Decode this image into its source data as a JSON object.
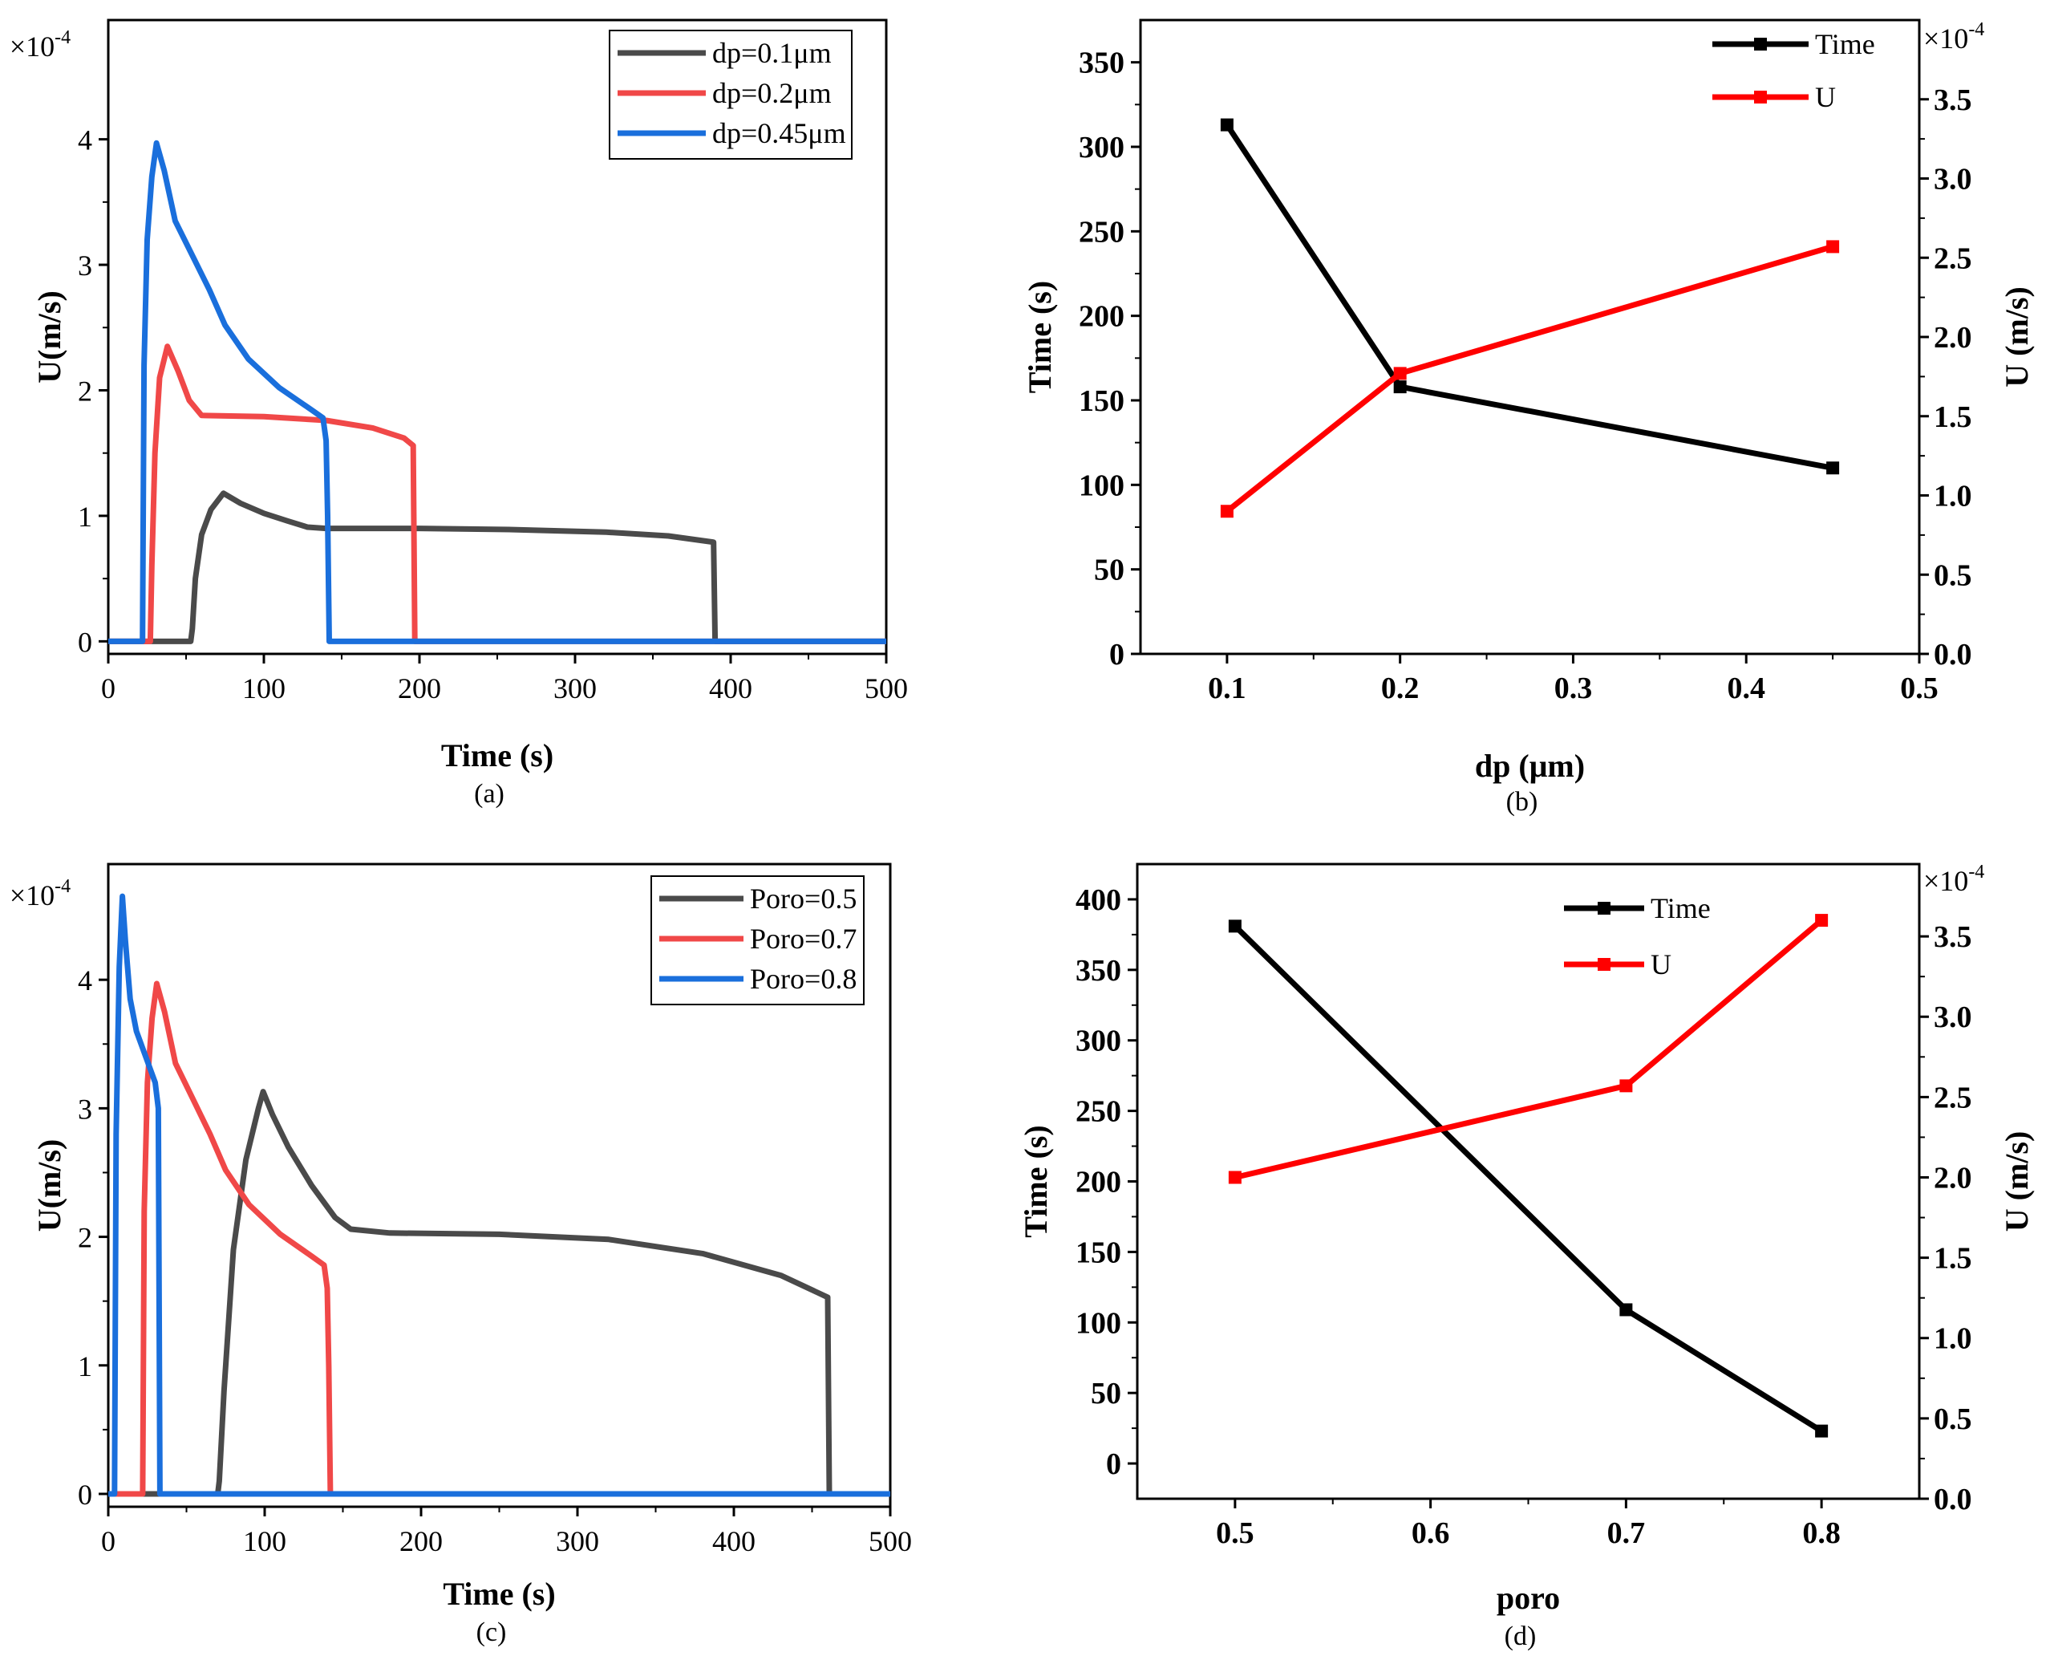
{
  "colors": {
    "gray": "#4a4a4a",
    "red": "#f04848",
    "blue": "#1a6fdc",
    "black": "#000000",
    "pure_red": "#ff0000"
  },
  "chart_data": [
    {
      "id": "a",
      "type": "line",
      "panel_label": "(a)",
      "xlabel": "Time (s)",
      "ylabel": "U(m/s)",
      "multiplier": "×10",
      "multiplier_exp": "-4",
      "xlim": [
        0,
        500
      ],
      "ylim": [
        -0.1,
        4.95
      ],
      "xticks": [
        0,
        100,
        200,
        300,
        400,
        500
      ],
      "xtick_labels": [
        "0",
        "100",
        "200",
        "300",
        "400",
        "500"
      ],
      "yticks": [
        0,
        1,
        2,
        3,
        4
      ],
      "ytick_labels": [
        "0",
        "1",
        "2",
        "3",
        "4"
      ],
      "legend": [
        "dp=0.1μm",
        "dp=0.2μm",
        "dp=0.45μm"
      ],
      "series": [
        {
          "name": "dp=0.1μm",
          "color": "gray",
          "points": [
            [
              0,
              0
            ],
            [
              53,
              0
            ],
            [
              54,
              0.1
            ],
            [
              56,
              0.5
            ],
            [
              60,
              0.85
            ],
            [
              66,
              1.05
            ],
            [
              74,
              1.18
            ],
            [
              85,
              1.1
            ],
            [
              100,
              1.02
            ],
            [
              115,
              0.96
            ],
            [
              128,
              0.91
            ],
            [
              140,
              0.9
            ],
            [
              200,
              0.9
            ],
            [
              260,
              0.89
            ],
            [
              320,
              0.87
            ],
            [
              360,
              0.84
            ],
            [
              389,
              0.79
            ],
            [
              390,
              0
            ],
            [
              500,
              0
            ]
          ]
        },
        {
          "name": "dp=0.2μm",
          "color": "red",
          "points": [
            [
              0,
              0
            ],
            [
              27,
              0
            ],
            [
              28,
              0.6
            ],
            [
              30,
              1.5
            ],
            [
              33,
              2.1
            ],
            [
              38,
              2.35
            ],
            [
              45,
              2.15
            ],
            [
              52,
              1.92
            ],
            [
              60,
              1.8
            ],
            [
              100,
              1.79
            ],
            [
              140,
              1.76
            ],
            [
              170,
              1.7
            ],
            [
              190,
              1.62
            ],
            [
              196,
              1.56
            ],
            [
              197,
              0
            ],
            [
              500,
              0
            ]
          ]
        },
        {
          "name": "dp=0.45μm",
          "color": "blue",
          "points": [
            [
              0,
              0
            ],
            [
              22,
              0
            ],
            [
              23,
              2.2
            ],
            [
              25,
              3.2
            ],
            [
              28,
              3.7
            ],
            [
              31,
              3.97
            ],
            [
              36,
              3.75
            ],
            [
              43,
              3.35
            ],
            [
              55,
              3.05
            ],
            [
              65,
              2.8
            ],
            [
              75,
              2.52
            ],
            [
              90,
              2.25
            ],
            [
              110,
              2.02
            ],
            [
              130,
              1.85
            ],
            [
              138,
              1.78
            ],
            [
              140,
              1.6
            ],
            [
              141,
              1.0
            ],
            [
              142,
              0
            ],
            [
              500,
              0
            ]
          ]
        }
      ]
    },
    {
      "id": "b",
      "type": "line",
      "panel_label": "(b)",
      "xlabel": "dp (μm)",
      "ylabel": "Time (s)",
      "ylabel_right": "U (m/s)",
      "multiplier": "×10",
      "multiplier_exp": "-4",
      "xlim": [
        0.05,
        0.5
      ],
      "ylim": [
        0,
        375
      ],
      "ylim_right": [
        0,
        4.0
      ],
      "xticks": [
        0.1,
        0.2,
        0.3,
        0.4,
        0.5
      ],
      "xtick_labels": [
        "0.1",
        "0.2",
        "0.3",
        "0.4",
        "0.5"
      ],
      "yticks": [
        0,
        50,
        100,
        150,
        200,
        250,
        300,
        350
      ],
      "ytick_labels": [
        "0",
        "50",
        "100",
        "150",
        "200",
        "250",
        "300",
        "350"
      ],
      "yticks_right": [
        0.0,
        0.5,
        1.0,
        1.5,
        2.0,
        2.5,
        3.0,
        3.5
      ],
      "ytick_labels_right": [
        "0.0",
        "0.5",
        "1.0",
        "1.5",
        "2.0",
        "2.5",
        "3.0",
        "3.5"
      ],
      "legend": [
        "Time",
        "U"
      ],
      "series": [
        {
          "name": "Time",
          "color": "black",
          "axis": "left",
          "x": [
            0.1,
            0.2,
            0.45
          ],
          "values": [
            313,
            158,
            110
          ]
        },
        {
          "name": "U",
          "color": "pure_red",
          "axis": "right",
          "x": [
            0.1,
            0.2,
            0.45
          ],
          "values": [
            0.9,
            1.77,
            2.57
          ]
        }
      ]
    },
    {
      "id": "c",
      "type": "line",
      "panel_label": "(c)",
      "xlabel": "Time (s)",
      "ylabel": "U(m/s)",
      "multiplier": "×10",
      "multiplier_exp": "-4",
      "xlim": [
        0,
        500
      ],
      "ylim": [
        -0.1,
        4.9
      ],
      "xticks": [
        0,
        100,
        200,
        300,
        400,
        500
      ],
      "xtick_labels": [
        "0",
        "100",
        "200",
        "300",
        "400",
        "500"
      ],
      "yticks": [
        0,
        1,
        2,
        3,
        4
      ],
      "ytick_labels": [
        "0",
        "1",
        "2",
        "3",
        "4"
      ],
      "legend": [
        "Poro=0.5",
        "Poro=0.7",
        "Poro=0.8"
      ],
      "series": [
        {
          "name": "Poro=0.5",
          "color": "gray",
          "points": [
            [
              0,
              0
            ],
            [
              70,
              0
            ],
            [
              71,
              0.1
            ],
            [
              74,
              0.8
            ],
            [
              80,
              1.9
            ],
            [
              88,
              2.6
            ],
            [
              96,
              3.0
            ],
            [
              99,
              3.13
            ],
            [
              105,
              2.95
            ],
            [
              115,
              2.7
            ],
            [
              130,
              2.4
            ],
            [
              145,
              2.15
            ],
            [
              155,
              2.06
            ],
            [
              180,
              2.03
            ],
            [
              250,
              2.02
            ],
            [
              320,
              1.98
            ],
            [
              380,
              1.87
            ],
            [
              430,
              1.7
            ],
            [
              460,
              1.53
            ],
            [
              461,
              0
            ],
            [
              500,
              0
            ]
          ]
        },
        {
          "name": "Poro=0.7",
          "color": "red",
          "points": [
            [
              0,
              0
            ],
            [
              22,
              0
            ],
            [
              23,
              2.2
            ],
            [
              25,
              3.2
            ],
            [
              28,
              3.7
            ],
            [
              31,
              3.97
            ],
            [
              36,
              3.75
            ],
            [
              43,
              3.35
            ],
            [
              55,
              3.05
            ],
            [
              65,
              2.8
            ],
            [
              75,
              2.52
            ],
            [
              90,
              2.25
            ],
            [
              110,
              2.02
            ],
            [
              130,
              1.85
            ],
            [
              138,
              1.78
            ],
            [
              140,
              1.6
            ],
            [
              141,
              1.0
            ],
            [
              142,
              0
            ],
            [
              500,
              0
            ]
          ]
        },
        {
          "name": "Poro=0.8",
          "color": "blue",
          "points": [
            [
              0,
              0
            ],
            [
              4,
              0
            ],
            [
              5,
              2.8
            ],
            [
              7,
              4.1
            ],
            [
              9,
              4.65
            ],
            [
              11,
              4.3
            ],
            [
              14,
              3.85
            ],
            [
              18,
              3.6
            ],
            [
              24,
              3.4
            ],
            [
              30,
              3.2
            ],
            [
              32,
              3.0
            ],
            [
              33,
              0
            ],
            [
              500,
              0
            ]
          ]
        }
      ]
    },
    {
      "id": "d",
      "type": "line",
      "panel_label": "(d)",
      "xlabel": "poro",
      "ylabel": "Time (s)",
      "ylabel_right": "U (m/s)",
      "multiplier": "×10",
      "multiplier_exp": "-4",
      "xlim": [
        0.45,
        0.85
      ],
      "ylim": [
        -25,
        425
      ],
      "ylim_right": [
        0,
        3.95
      ],
      "xticks": [
        0.5,
        0.6,
        0.7,
        0.8
      ],
      "xtick_labels": [
        "0.5",
        "0.6",
        "0.7",
        "0.8"
      ],
      "yticks": [
        0,
        50,
        100,
        150,
        200,
        250,
        300,
        350,
        400
      ],
      "ytick_labels": [
        "0",
        "50",
        "100",
        "150",
        "200",
        "250",
        "300",
        "350",
        "400"
      ],
      "yticks_right": [
        0.0,
        0.5,
        1.0,
        1.5,
        2.0,
        2.5,
        3.0,
        3.5
      ],
      "ytick_labels_right": [
        "0.0",
        "0.5",
        "1.0",
        "1.5",
        "2.0",
        "2.5",
        "3.0",
        "3.5"
      ],
      "legend": [
        "Time",
        "U"
      ],
      "series": [
        {
          "name": "Time",
          "color": "black",
          "axis": "left",
          "x": [
            0.5,
            0.7,
            0.8
          ],
          "values": [
            381,
            109,
            23
          ]
        },
        {
          "name": "U",
          "color": "pure_red",
          "axis": "right",
          "x": [
            0.5,
            0.7,
            0.8
          ],
          "values": [
            2.0,
            2.57,
            3.6
          ]
        }
      ]
    }
  ]
}
